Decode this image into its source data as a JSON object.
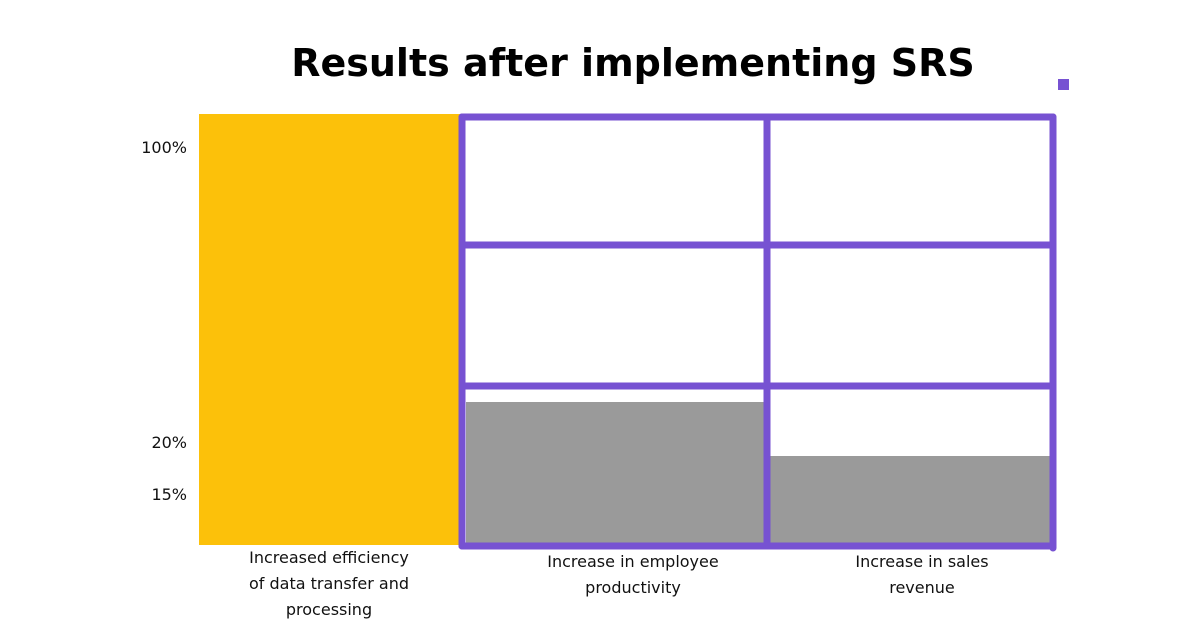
{
  "chart_data": {
    "type": "bar",
    "title": "Results after implementing SRS",
    "xlabel": "",
    "ylabel": "",
    "categories": [
      [
        "Increased efficiency",
        "of data transfer and",
        "processing"
      ],
      [
        "Increase in employee",
        "productivity"
      ],
      [
        "Increase in sales",
        "revenue"
      ]
    ],
    "values": [
      100,
      20,
      15
    ],
    "value_unit": "%",
    "yticks": [
      {
        "value": 100,
        "label": "100%"
      },
      {
        "value": 20,
        "label": "20%"
      },
      {
        "value": 15,
        "label": "15%"
      }
    ],
    "ylim": [
      0,
      100
    ],
    "grid": true,
    "legend": "none"
  },
  "colors": {
    "highlight_bar": "#FCC10A",
    "bar": "#9A9A9A",
    "frame": "#7752D2",
    "title": "#000000",
    "text": "#111111"
  }
}
